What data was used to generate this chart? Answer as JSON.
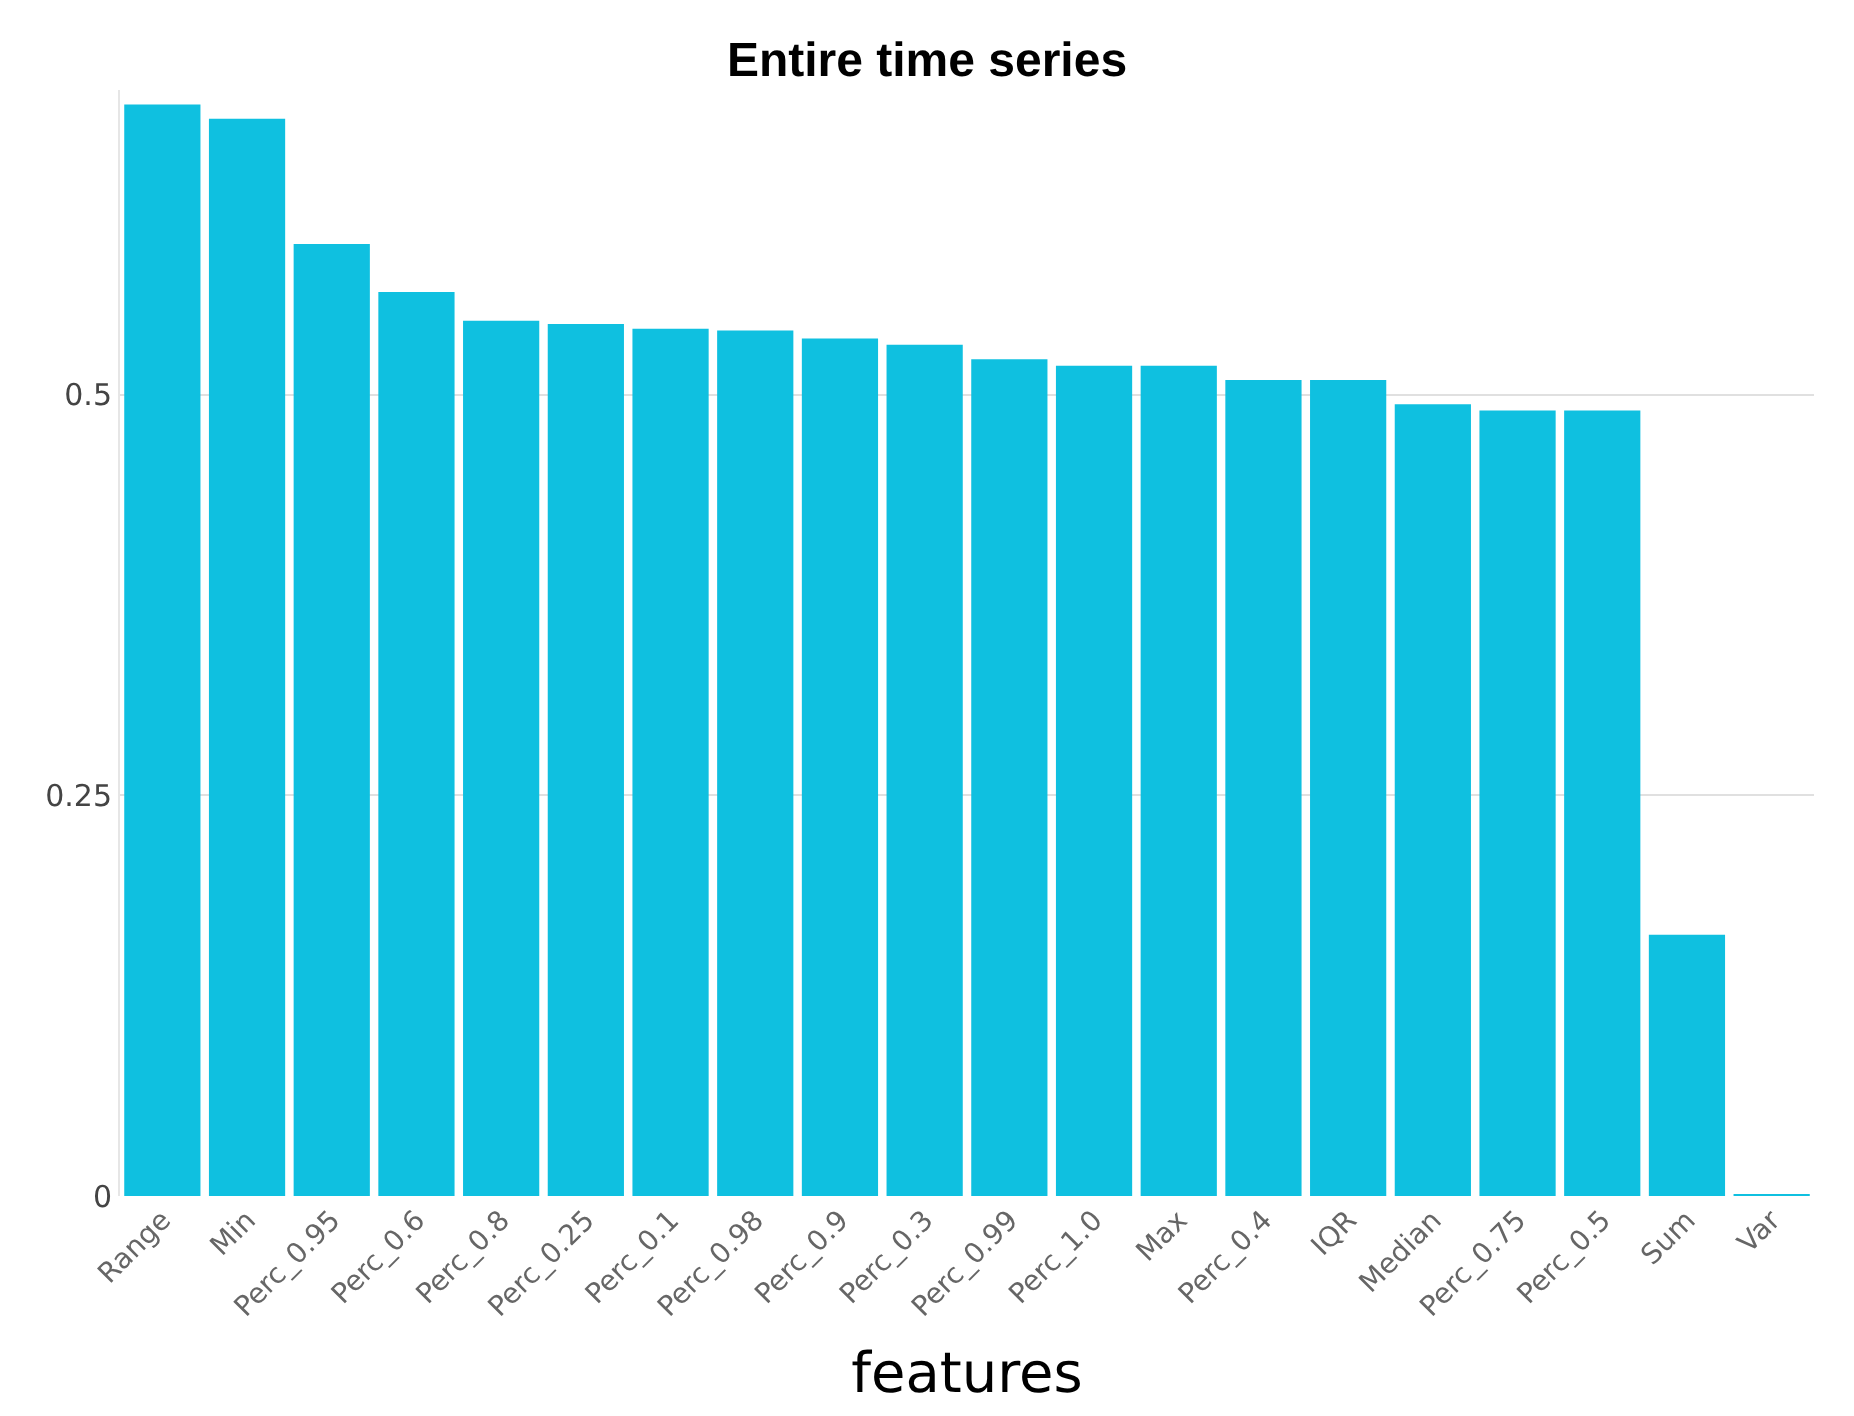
{
  "chart_data": {
    "type": "bar",
    "title": "Entire time series",
    "xlabel": "features",
    "categories": [
      "Range",
      "Min",
      "Perc_0.95",
      "Perc_0.6",
      "Perc_0.8",
      "Perc_0.25",
      "Perc_0.1",
      "Perc_0.98",
      "Perc_0.9",
      "Perc_0.3",
      "Perc_0.99",
      "Perc_1.0",
      "Max",
      "Perc_0.4",
      "IQR",
      "Median",
      "Perc_0.75",
      "Perc_0.5",
      "Sum",
      "Var"
    ],
    "values": [
      0.681,
      0.672,
      0.594,
      0.564,
      0.546,
      0.544,
      0.541,
      0.54,
      0.535,
      0.531,
      0.522,
      0.518,
      0.518,
      0.509,
      0.509,
      0.494,
      0.49,
      0.49,
      0.163,
      0.001
    ],
    "color": "#0fc0e0",
    "ylim": [
      0,
      0.69
    ],
    "yticks": [
      0,
      0.25,
      0.5
    ],
    "grid": "y"
  }
}
